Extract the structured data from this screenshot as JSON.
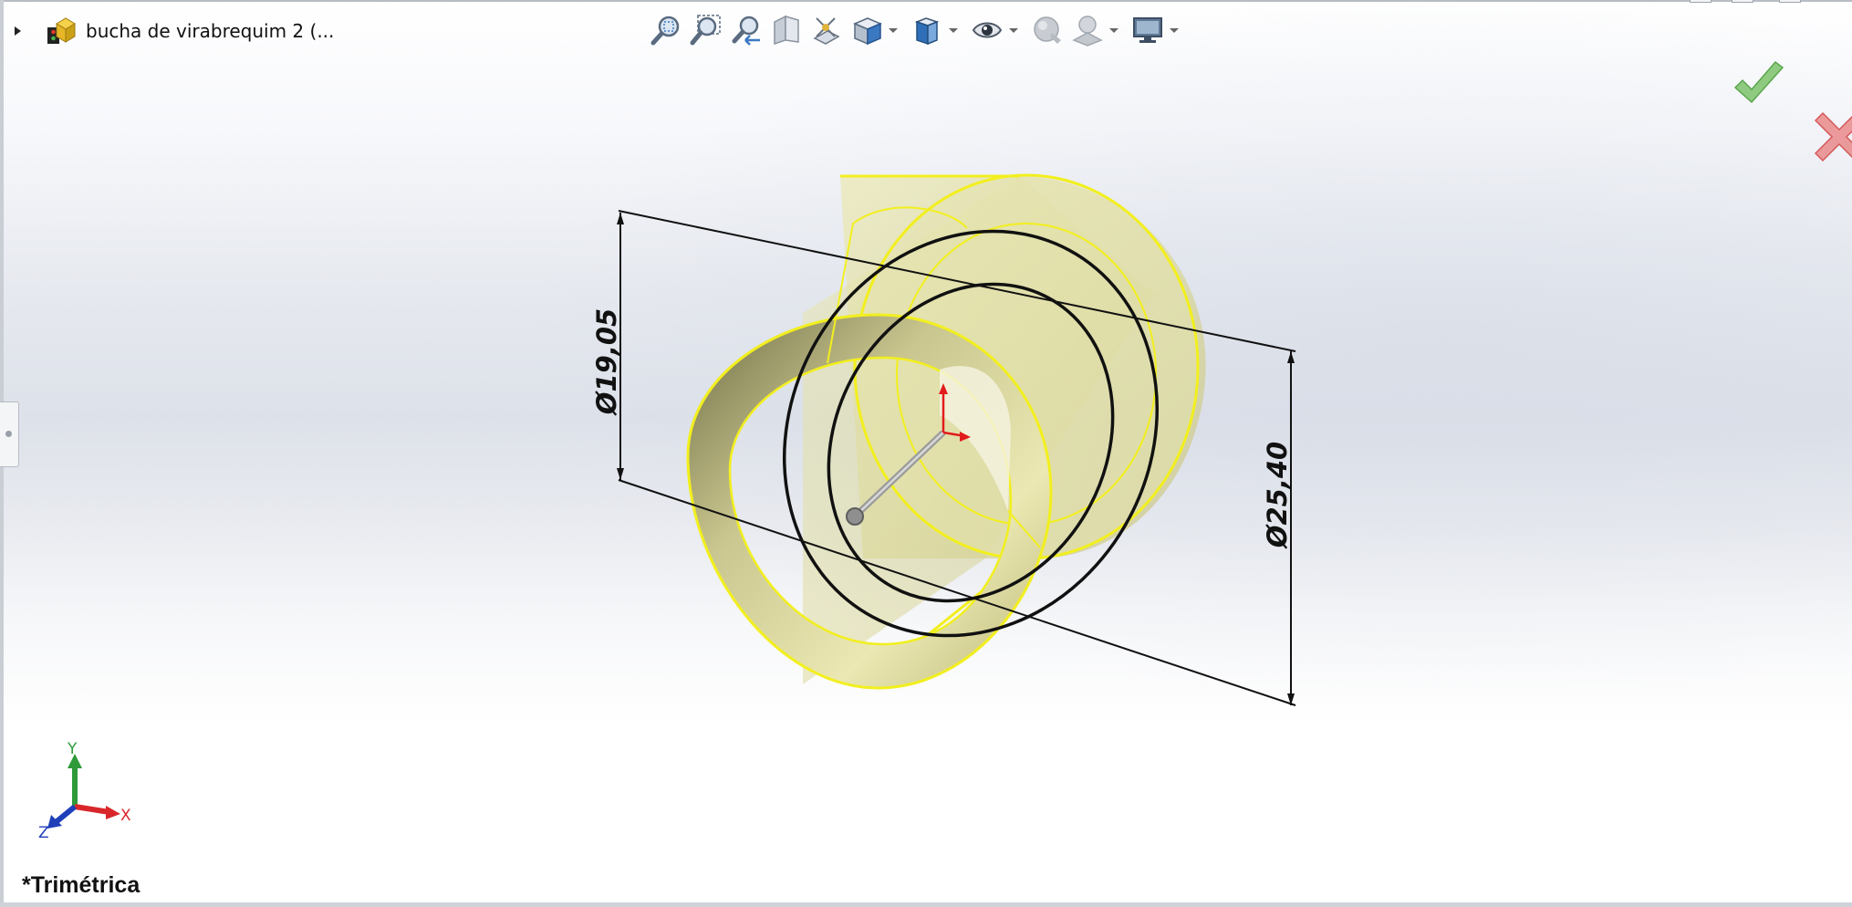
{
  "document": {
    "title": "bucha de virabrequim 2  (..."
  },
  "view": {
    "orientation_label": "*Trimétrica"
  },
  "dimensions": [
    {
      "id": "inner-diameter",
      "label": "Ø19,05"
    },
    {
      "id": "outer-diameter",
      "label": "Ø25,40"
    }
  ],
  "triad": {
    "x": "X",
    "y": "Y",
    "z": "Z"
  },
  "toolbar": {
    "items": [
      {
        "icon": "zoom-to-fit-icon"
      },
      {
        "icon": "zoom-to-area-icon"
      },
      {
        "icon": "previous-view-icon"
      },
      {
        "icon": "section-view-icon"
      },
      {
        "icon": "dynamic-annotation-views-icon"
      },
      {
        "icon": "view-orientation-icon",
        "dropdown": true
      },
      {
        "icon": "display-style-icon",
        "dropdown": true
      },
      {
        "icon": "hide-show-items-icon",
        "dropdown": true
      },
      {
        "icon": "edit-appearance-icon"
      },
      {
        "icon": "apply-scene-icon",
        "dropdown": true
      },
      {
        "icon": "view-settings-icon",
        "dropdown": true
      }
    ]
  },
  "colors": {
    "part_fill": "#d9d69a",
    "part_edge": "#f2ef1e",
    "sketch_line": "#111111",
    "confirm_ok": "#7bc36a",
    "confirm_cancel": "#e87b7b",
    "axis_x": "#d9262b",
    "axis_y": "#2e9a3a",
    "axis_z": "#1f3fb8"
  }
}
